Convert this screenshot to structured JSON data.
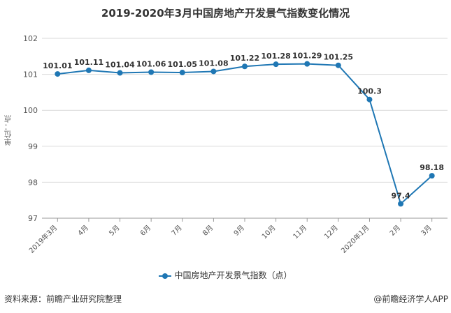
{
  "title": "2019-2020年3月中国房地产开发景气指数变化情况",
  "ylabel": "单位：点",
  "legend_label": "中国房地产开发景气指数（点）",
  "footer": {
    "source": "资料来源：前瞻产业研究院整理",
    "credit": "@前瞻经济学人APP"
  },
  "colors": {
    "series": "#1f77b4",
    "grid": "#d9d9d9",
    "axis": "#999999"
  },
  "chart_data": {
    "type": "line",
    "title": "2019-2020年3月中国房地产开发景气指数变化情况",
    "xlabel": "",
    "ylabel": "单位：点",
    "categories": [
      "2019年3月",
      "4月",
      "5月",
      "6月",
      "7月",
      "8月",
      "9月",
      "10月",
      "11月",
      "12月",
      "2020年1月",
      "2月",
      "3月"
    ],
    "series": [
      {
        "name": "中国房地产开发景气指数（点）",
        "values": [
          101.01,
          101.11,
          101.04,
          101.06,
          101.05,
          101.08,
          101.22,
          101.28,
          101.29,
          101.25,
          100.3,
          97.4,
          98.18
        ]
      }
    ],
    "labels": [
      "101.01",
      "101.11",
      "101.04",
      "101.06",
      "101.05",
      "101.08",
      "101.22",
      "101.28",
      "101.29",
      "101.25",
      "100.3",
      "97.4",
      "98.18"
    ],
    "ylim": [
      97,
      102
    ],
    "yticks": [
      97,
      98,
      99,
      100,
      101,
      102
    ],
    "grid": true,
    "legend_position": "bottom"
  }
}
